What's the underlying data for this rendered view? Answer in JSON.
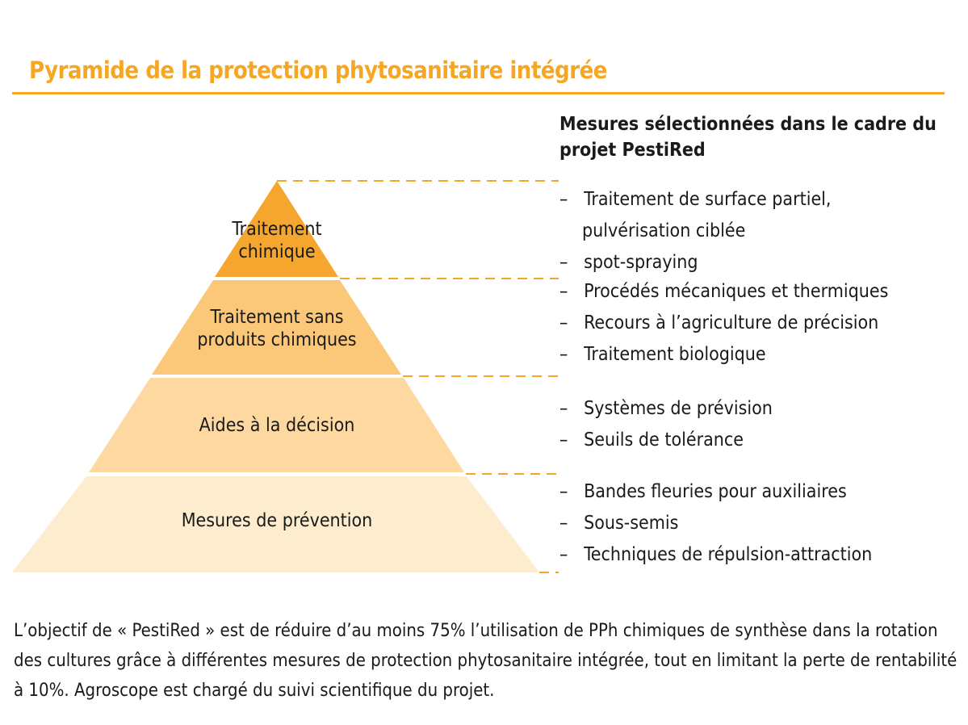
{
  "title": "Pyramide de la protection phytosanitaire intégrée",
  "accent_color": "#f5a623",
  "measures_heading": "Mesures sélectionnées dans le cadre du projet PestiRed",
  "levels": [
    {
      "label_line1": "Traitement",
      "label_line2": "chimique",
      "color": "#f5a62f",
      "measures": [
        "Traitement de surface partiel, pulvérisation ciblée",
        "spot-spraying"
      ]
    },
    {
      "label_line1": "Traitement sans",
      "label_line2": "produits chimiques",
      "color": "#fac878",
      "measures": [
        "Procédés mécaniques et thermiques",
        "Recours à l’agriculture de précision",
        "Traitement biologique"
      ]
    },
    {
      "label_line1": "Aides à la décision",
      "label_line2": "",
      "color": "#fdd9a1",
      "measures": [
        "Systèmes de prévision",
        "Seuils de tolérance"
      ]
    },
    {
      "label_line1": "Mesures de prévention",
      "label_line2": "",
      "color": "#feecce",
      "measures": [
        "Bandes fleuries pour auxiliaires",
        "Sous-semis",
        "Techniques de répulsion-attraction"
      ]
    }
  ],
  "footer": "L’objectif de « PestiRed » est de réduire d’au moins 75% l’utilisation de PPh chimiques de synthèse dans la rotation des cultures grâce à différentes mesures de protection phytosanitaire intégrée, tout en limitant la perte de rentabilité à 10%. Agroscope est chargé du suivi scientifique du projet."
}
